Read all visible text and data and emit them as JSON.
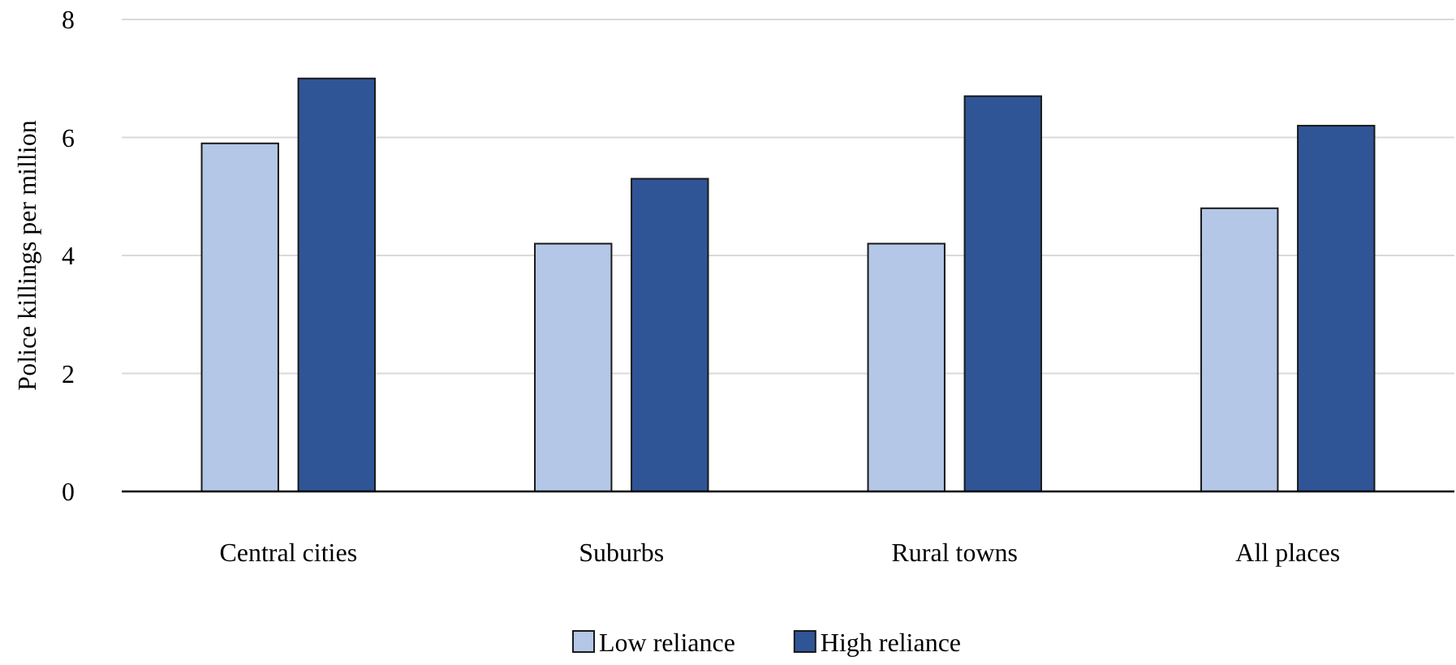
{
  "chart_data": {
    "type": "bar",
    "ylabel": "Police killings per million",
    "categories": [
      "Central cities",
      "Suburbs",
      "Rural towns",
      "All places"
    ],
    "series": [
      {
        "name": "Low reliance",
        "color": "#b4c7e7",
        "values": [
          5.9,
          4.2,
          4.2,
          4.8
        ]
      },
      {
        "name": "High reliance",
        "color": "#2f5597",
        "values": [
          7.0,
          5.3,
          6.7,
          6.2
        ]
      }
    ],
    "ylim": [
      0,
      8
    ],
    "yticks": [
      0,
      2,
      4,
      6,
      8
    ],
    "grid": "y",
    "legend": "bottom"
  }
}
